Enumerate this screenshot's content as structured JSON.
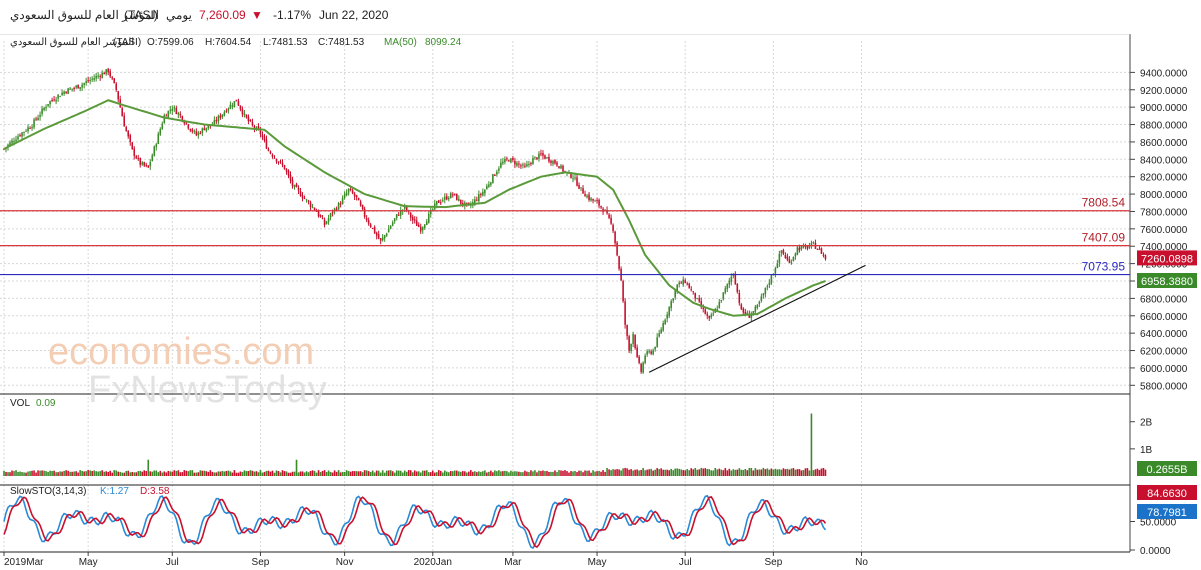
{
  "header": {
    "name": "المؤشر العام للسوق السعودي",
    "symbol": "(TASI)",
    "period": "يومي",
    "price": "7,260.09",
    "change": "-1.17%",
    "date": "Jun 22, 2020",
    "down_arrow": "▼"
  },
  "ohlc_line": {
    "name": "المؤشر العام للسوق السعودي",
    "symbol": "(TASI)",
    "open": "O:7599.06",
    "high": "H:7604.54",
    "low": "L:7481.53",
    "close": "C:7481.53",
    "ma_label": "MA(50)",
    "ma_value": "8099.24"
  },
  "watermark": {
    "line1": "economies.com",
    "line2": "FxNewsToday"
  },
  "colors": {
    "up": "#3a8a2a",
    "down": "#c8102e",
    "ma": "#5a9a3a",
    "resistance": "#d9363e",
    "support": "#2b2bbf",
    "trend": "#111111",
    "stoch_k": "#2a8ad6",
    "stoch_d": "#c8102e"
  },
  "chart_data": [
    {
      "type": "candlestick",
      "panel": "price",
      "ylim": [
        5700,
        9600
      ],
      "y_ticks": [
        "9400.0000",
        "9200.0000",
        "9000.0000",
        "8800.0000",
        "8600.0000",
        "8400.0000",
        "8200.0000",
        "8000.0000",
        "7800.0000",
        "7600.0000",
        "7400.0000",
        "7200.0000",
        "7000.0000",
        "6800.0000",
        "6600.0000",
        "6400.0000",
        "6200.0000",
        "6000.0000",
        "5800.0000"
      ],
      "x_labels": [
        "2019Mar",
        "May",
        "Jul",
        "Sep",
        "Nov",
        "2020Jan",
        "Mar",
        "May",
        "Jul",
        "Sep",
        "No"
      ],
      "close_path": [
        [
          0,
          8520
        ],
        [
          6,
          8650
        ],
        [
          14,
          8800
        ],
        [
          22,
          9050
        ],
        [
          30,
          9180
        ],
        [
          38,
          9250
        ],
        [
          46,
          9350
        ],
        [
          52,
          9420
        ],
        [
          56,
          9200
        ],
        [
          60,
          8800
        ],
        [
          64,
          8500
        ],
        [
          68,
          8350
        ],
        [
          72,
          8300
        ],
        [
          76,
          8600
        ],
        [
          80,
          8900
        ],
        [
          84,
          9000
        ],
        [
          88,
          8900
        ],
        [
          92,
          8780
        ],
        [
          96,
          8680
        ],
        [
          100,
          8760
        ],
        [
          104,
          8800
        ],
        [
          108,
          8900
        ],
        [
          112,
          9000
        ],
        [
          116,
          9080
        ],
        [
          120,
          8900
        ],
        [
          124,
          8780
        ],
        [
          128,
          8700
        ],
        [
          132,
          8500
        ],
        [
          136,
          8400
        ],
        [
          140,
          8300
        ],
        [
          144,
          8100
        ],
        [
          148,
          8000
        ],
        [
          152,
          7900
        ],
        [
          156,
          7800
        ],
        [
          160,
          7650
        ],
        [
          164,
          7800
        ],
        [
          168,
          7900
        ],
        [
          172,
          8050
        ],
        [
          176,
          7950
        ],
        [
          180,
          7750
        ],
        [
          184,
          7600
        ],
        [
          188,
          7450
        ],
        [
          192,
          7600
        ],
        [
          196,
          7750
        ],
        [
          200,
          7850
        ],
        [
          204,
          7700
        ],
        [
          208,
          7600
        ],
        [
          212,
          7750
        ],
        [
          216,
          7900
        ],
        [
          220,
          7950
        ],
        [
          224,
          8000
        ],
        [
          228,
          7900
        ],
        [
          232,
          7850
        ],
        [
          236,
          7950
        ],
        [
          240,
          8050
        ],
        [
          244,
          8200
        ],
        [
          248,
          8350
        ],
        [
          252,
          8400
        ],
        [
          256,
          8350
        ],
        [
          260,
          8300
        ],
        [
          264,
          8400
        ],
        [
          268,
          8450
        ],
        [
          272,
          8400
        ],
        [
          276,
          8350
        ],
        [
          280,
          8250
        ],
        [
          284,
          8200
        ],
        [
          288,
          8050
        ],
        [
          292,
          7950
        ],
        [
          296,
          7900
        ],
        [
          300,
          7800
        ],
        [
          304,
          7600
        ],
        [
          306,
          7300
        ],
        [
          308,
          7000
        ],
        [
          310,
          6500
        ],
        [
          312,
          6200
        ],
        [
          314,
          6400
        ],
        [
          316,
          6100
        ],
        [
          318,
          5960
        ],
        [
          320,
          6150
        ],
        [
          324,
          6200
        ],
        [
          328,
          6450
        ],
        [
          332,
          6700
        ],
        [
          336,
          6950
        ],
        [
          340,
          7000
        ],
        [
          344,
          6850
        ],
        [
          348,
          6700
        ],
        [
          352,
          6550
        ],
        [
          356,
          6700
        ],
        [
          360,
          6900
        ],
        [
          364,
          7100
        ],
        [
          368,
          6650
        ],
        [
          372,
          6600
        ],
        [
          376,
          6700
        ],
        [
          380,
          6900
        ],
        [
          384,
          7100
        ],
        [
          388,
          7350
        ],
        [
          392,
          7200
        ],
        [
          396,
          7380
        ],
        [
          400,
          7380
        ],
        [
          404,
          7420
        ],
        [
          408,
          7330
        ],
        [
          410,
          7260
        ]
      ],
      "close_path_x_units": "trading days since 2019Mar",
      "ma50_path": [
        [
          0,
          8520
        ],
        [
          20,
          8750
        ],
        [
          40,
          8950
        ],
        [
          52,
          9080
        ],
        [
          60,
          9020
        ],
        [
          80,
          8880
        ],
        [
          100,
          8800
        ],
        [
          120,
          8760
        ],
        [
          130,
          8740
        ],
        [
          140,
          8550
        ],
        [
          160,
          8250
        ],
        [
          180,
          8000
        ],
        [
          200,
          7860
        ],
        [
          220,
          7850
        ],
        [
          240,
          7900
        ],
        [
          252,
          8050
        ],
        [
          268,
          8200
        ],
        [
          280,
          8250
        ],
        [
          296,
          8200
        ],
        [
          304,
          8050
        ],
        [
          312,
          7700
        ],
        [
          320,
          7300
        ],
        [
          332,
          6950
        ],
        [
          344,
          6750
        ],
        [
          352,
          6680
        ],
        [
          364,
          6600
        ],
        [
          376,
          6620
        ],
        [
          390,
          6800
        ],
        [
          404,
          6950
        ],
        [
          410,
          7000
        ]
      ],
      "last_price_label": "7260.0898",
      "ma_last_label": "6958.3880",
      "levels": [
        {
          "name": "resistance-2",
          "value": 7808.54,
          "label": "7808.54"
        },
        {
          "name": "resistance-1",
          "value": 7407.09,
          "label": "7407.09"
        },
        {
          "name": "support",
          "value": 7073.95,
          "label": "7073.95"
        }
      ],
      "trendline": {
        "from": [
          322,
          5950
        ],
        "to": [
          430,
          7180
        ]
      }
    },
    {
      "type": "bar",
      "panel": "volume",
      "label": "VOL",
      "value_label": "0.09",
      "ylim": [
        0,
        2.8
      ],
      "y_ticks": [
        "2B",
        "1B"
      ],
      "last_label": "0.2655B",
      "spike_index": 403,
      "spike_value": 2.3
    },
    {
      "type": "line",
      "panel": "stochastic",
      "label": "SlowSTO(3,14,3)",
      "k_label": "K:1.27",
      "d_label": "D:3.58",
      "ylim": [
        0,
        100
      ],
      "y_ticks": [
        "50.0000",
        "0.0000"
      ],
      "k_last_label": "84.6630",
      "d_last_label": "78.7981"
    }
  ]
}
